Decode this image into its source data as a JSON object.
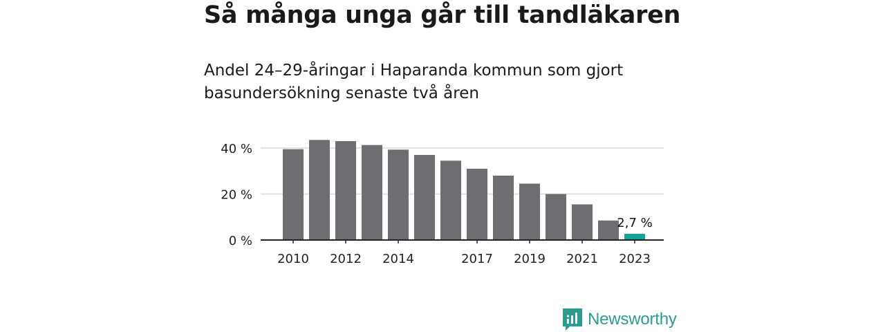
{
  "header": {
    "title": "Så många unga går till tandläkaren",
    "subtitle": "Andel 24–29-åringar i Haparanda kommun som gjort basundersökning senaste två åren"
  },
  "brand": {
    "name": "Newsworthy",
    "color": "#2a9d8f"
  },
  "colors": {
    "bar": "#6e6d72",
    "highlight": "#14a394",
    "grid": "#d9d9d9",
    "axis": "#222222"
  },
  "chart_data": {
    "type": "bar",
    "x": [
      2010,
      2011,
      2012,
      2013,
      2014,
      2015,
      2016,
      2017,
      2018,
      2019,
      2020,
      2021,
      2022,
      2023
    ],
    "values": [
      39.5,
      43.5,
      43.0,
      41.3,
      39.3,
      37.0,
      34.5,
      31.0,
      28.0,
      24.5,
      20.0,
      15.5,
      8.5,
      2.7
    ],
    "xtick_labels": [
      "2010",
      "2012",
      "2014",
      "2017",
      "2019",
      "2021",
      "2023"
    ],
    "xtick_years": [
      2010,
      2012,
      2014,
      2017,
      2019,
      2021,
      2023
    ],
    "yticks": [
      0,
      20,
      40
    ],
    "ytick_labels": [
      "0 %",
      "20 %",
      "40 %"
    ],
    "ylim": [
      0,
      45
    ],
    "highlight_index": 13,
    "data_label": "2,7 %",
    "grid": true
  }
}
